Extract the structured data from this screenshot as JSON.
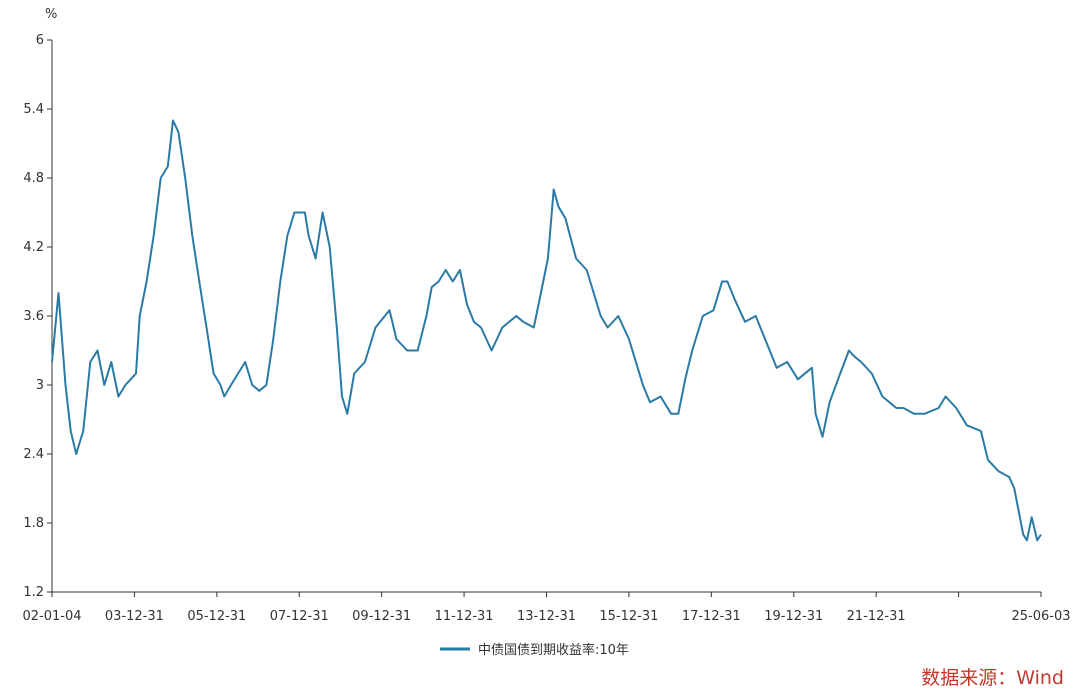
{
  "chart_data": {
    "type": "line",
    "ylabel": "%",
    "ylim": [
      1.2,
      6
    ],
    "y_ticks": [
      "6",
      "5.4",
      "4.8",
      "4.2",
      "3.6",
      "3",
      "2.4",
      "1.8",
      "1.2"
    ],
    "x_ticks": [
      "02-01-04",
      "03-12-31",
      "05-12-31",
      "07-12-31",
      "09-12-31",
      "11-12-31",
      "13-12-31",
      "15-12-31",
      "17-12-31",
      "19-12-31",
      "21-12-31",
      "",
      "25-06-03"
    ],
    "grid": false,
    "legend_position": "bottom-center",
    "series": [
      {
        "name": "中债国债到期收益率:10年",
        "color": "#2a7aa6",
        "x": [
          "2002-01-04",
          "2002-03-01",
          "2002-05-01",
          "2002-06-15",
          "2002-08-01",
          "2002-10-01",
          "2002-12-01",
          "2003-02-01",
          "2003-04-01",
          "2003-06-01",
          "2003-08-01",
          "2003-10-01",
          "2003-12-31",
          "2004-02-01",
          "2004-04-01",
          "2004-06-01",
          "2004-08-01",
          "2004-10-01",
          "2004-11-15",
          "2005-01-01",
          "2005-03-01",
          "2005-05-01",
          "2005-07-01",
          "2005-09-01",
          "2005-11-01",
          "2005-12-31",
          "2006-02-01",
          "2006-04-01",
          "2006-06-01",
          "2006-08-01",
          "2006-10-01",
          "2006-12-01",
          "2007-02-01",
          "2007-04-01",
          "2007-06-01",
          "2007-08-01",
          "2007-10-01",
          "2007-12-31",
          "2008-02-01",
          "2008-04-01",
          "2008-06-01",
          "2008-08-01",
          "2008-10-01",
          "2008-11-15",
          "2008-12-31",
          "2009-03-01",
          "2009-06-01",
          "2009-09-01",
          "2009-12-31",
          "2010-03-01",
          "2010-06-01",
          "2010-09-01",
          "2010-11-15",
          "2010-12-31",
          "2011-03-01",
          "2011-05-01",
          "2011-07-01",
          "2011-09-01",
          "2011-11-01",
          "2011-12-31",
          "2012-03-01",
          "2012-06-01",
          "2012-09-01",
          "2012-12-31",
          "2013-03-01",
          "2013-06-01",
          "2013-08-01",
          "2013-10-01",
          "2013-11-20",
          "2013-12-31",
          "2014-03-01",
          "2014-06-01",
          "2014-09-01",
          "2014-12-31",
          "2015-03-01",
          "2015-06-01",
          "2015-09-01",
          "2015-12-31",
          "2016-03-01",
          "2016-06-01",
          "2016-09-01",
          "2016-11-01",
          "2016-12-31",
          "2017-03-01",
          "2017-06-01",
          "2017-09-01",
          "2017-11-15",
          "2017-12-31",
          "2018-03-01",
          "2018-06-01",
          "2018-09-01",
          "2018-12-31",
          "2019-03-01",
          "2019-06-01",
          "2019-09-01",
          "2019-12-31",
          "2020-02-01",
          "2020-04-01",
          "2020-06-01",
          "2020-09-01",
          "2020-11-15",
          "2020-12-31",
          "2021-03-01",
          "2021-06-01",
          "2021-09-01",
          "2021-12-31",
          "2022-03-01",
          "2022-06-01",
          "2022-09-01",
          "2022-12-31",
          "2023-03-01",
          "2023-06-01",
          "2023-09-01",
          "2023-12-31",
          "2024-03-01",
          "2024-06-01",
          "2024-09-01",
          "2024-10-15",
          "2024-12-31",
          "2025-02-01",
          "2025-03-15",
          "2025-05-01",
          "2025-06-03"
        ],
        "values": [
          3.2,
          3.8,
          3.0,
          2.6,
          2.4,
          2.6,
          3.2,
          3.3,
          3.0,
          3.2,
          2.9,
          3.0,
          3.1,
          3.6,
          3.9,
          4.3,
          4.8,
          4.9,
          5.3,
          5.2,
          4.8,
          4.3,
          3.9,
          3.5,
          3.1,
          3.0,
          2.9,
          3.0,
          3.1,
          3.2,
          3.0,
          2.95,
          3.0,
          3.4,
          3.9,
          4.3,
          4.5,
          4.5,
          4.3,
          4.1,
          4.5,
          4.2,
          3.5,
          2.9,
          2.75,
          3.1,
          3.2,
          3.5,
          3.65,
          3.4,
          3.3,
          3.3,
          3.6,
          3.85,
          3.9,
          4.0,
          3.9,
          4.0,
          3.7,
          3.55,
          3.5,
          3.3,
          3.5,
          3.6,
          3.55,
          3.5,
          3.8,
          4.1,
          4.7,
          4.55,
          4.45,
          4.1,
          4.0,
          3.6,
          3.5,
          3.6,
          3.4,
          3.0,
          2.85,
          2.9,
          2.75,
          2.75,
          3.05,
          3.3,
          3.6,
          3.65,
          3.9,
          3.9,
          3.75,
          3.55,
          3.6,
          3.3,
          3.15,
          3.2,
          3.05,
          3.15,
          2.75,
          2.55,
          2.85,
          3.1,
          3.3,
          3.25,
          3.2,
          3.1,
          2.9,
          2.8,
          2.8,
          2.75,
          2.75,
          2.8,
          2.9,
          2.8,
          2.65,
          2.6,
          2.35,
          2.25,
          2.2,
          2.1,
          1.7,
          1.65,
          1.85,
          1.65,
          1.7
        ]
      }
    ],
    "source": "数据来源：Wind"
  }
}
